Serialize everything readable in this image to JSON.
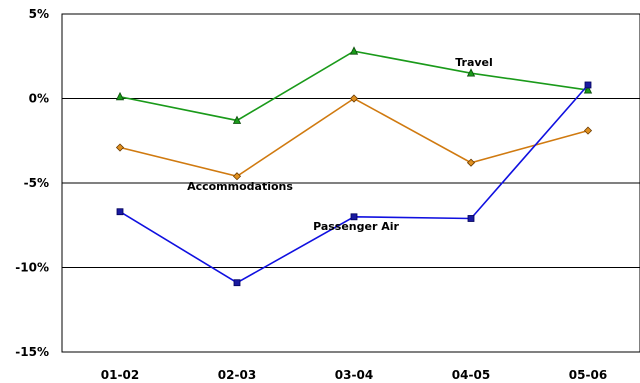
{
  "chart_data": {
    "type": "line",
    "title": "",
    "xlabel": "",
    "ylabel": "",
    "categories": [
      "01-02",
      "02-03",
      "03-04",
      "04-05",
      "05-06"
    ],
    "ylim": [
      -15,
      5
    ],
    "yticks": [
      5,
      0,
      -5,
      -10,
      -15
    ],
    "ytick_labels": [
      "5%",
      "0%",
      "-5%",
      "-10%",
      "-15%"
    ],
    "grid": true,
    "series": [
      {
        "name": "Travel",
        "color": "#1a9a1a",
        "marker": "triangle",
        "values": [
          0.1,
          -1.3,
          2.8,
          1.5,
          0.5
        ]
      },
      {
        "name": "Accommodations",
        "color": "#d07a10",
        "marker": "diamond",
        "values": [
          -2.9,
          -4.6,
          0.0,
          -3.8,
          -1.9
        ]
      },
      {
        "name": "Passenger Air",
        "color": "#1010e0",
        "marker": "square",
        "values": [
          -6.7,
          -10.9,
          -7.0,
          -7.1,
          0.8
        ]
      }
    ]
  }
}
